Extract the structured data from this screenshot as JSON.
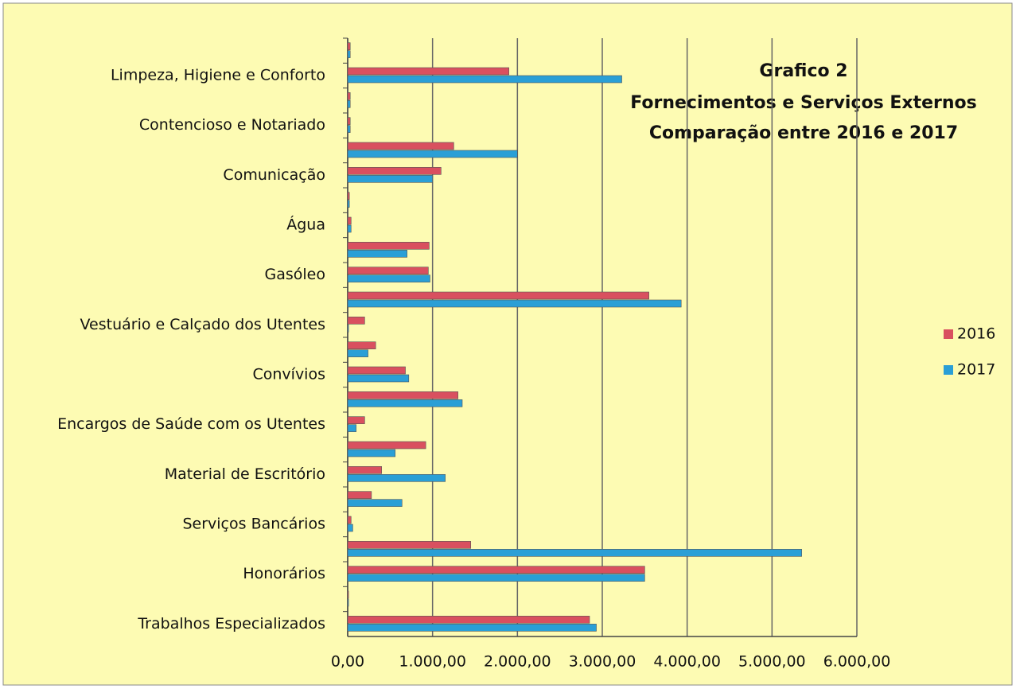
{
  "chart_data": {
    "type": "hbar",
    "title": "Grafico 2",
    "subtitle": [
      "Fornecimentos e Serviços Externos",
      "Comparação entre 2016 e 2017"
    ],
    "categories": [
      null,
      "Limpeza, Higiene e Conforto",
      null,
      "Contencioso e Notariado",
      null,
      "Comunicação",
      null,
      "Água",
      null,
      "Gasóleo",
      null,
      "Vestuário e Calçado dos Utentes",
      null,
      "Convívios",
      null,
      "Encargos de Saúde com os Utentes",
      null,
      "Material de Escritório",
      null,
      "Serviços Bancários",
      null,
      "Honorários",
      null,
      "Trabalhos Especializados"
    ],
    "series": [
      {
        "name": "2016",
        "color": "#d9505f",
        "values": [
          30,
          1900,
          30,
          30,
          1250,
          1100,
          20,
          40,
          960,
          950,
          3550,
          200,
          330,
          680,
          1300,
          200,
          920,
          400,
          280,
          40,
          1450,
          3500,
          10,
          2850
        ]
      },
      {
        "name": "2017",
        "color": "#2a9fd6",
        "values": [
          30,
          3230,
          30,
          30,
          2000,
          1000,
          20,
          40,
          700,
          970,
          3930,
          10,
          240,
          720,
          1350,
          100,
          560,
          1150,
          640,
          60,
          5350,
          3500,
          10,
          2930
        ]
      }
    ],
    "xlim": [
      0,
      6000
    ],
    "xticks": [
      {
        "value": 0,
        "label": "0,00"
      },
      {
        "value": 1000,
        "label": "1.000,00"
      },
      {
        "value": 2000,
        "label": "2.000,00"
      },
      {
        "value": 3000,
        "label": "3.000,00"
      },
      {
        "value": 4000,
        "label": "4.000,00"
      },
      {
        "value": 5000,
        "label": "5.000,00"
      },
      {
        "value": 6000,
        "label": "6.000,00"
      }
    ],
    "grid": true,
    "legend": "right"
  }
}
